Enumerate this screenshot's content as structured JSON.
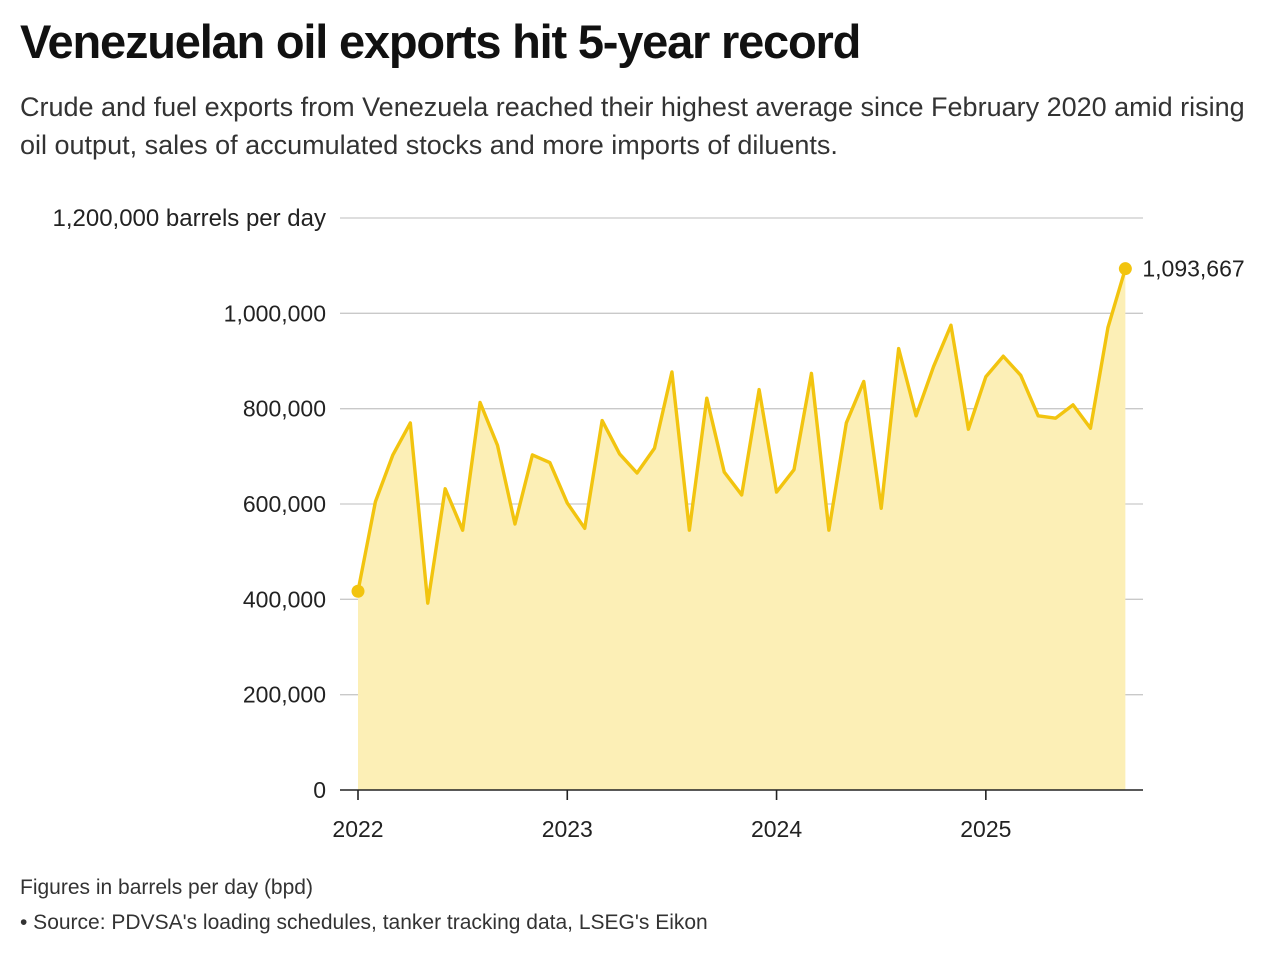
{
  "title": "Venezuelan oil exports hit 5-year record",
  "subtitle": "Crude and fuel exports from Venezuela reached their highest average since February 2020 amid rising oil output, sales of accumulated stocks and more imports of diluents.",
  "footnote": "Figures in barrels per day (bpd)",
  "source": "• Source: PDVSA's loading schedules, tanker tracking data, LSEG's Eikon",
  "chart_data": {
    "type": "area",
    "title": "Venezuelan oil exports hit 5-year record",
    "ylabel": "barrels per day",
    "xlabel": "",
    "ylim": [
      0,
      1200000
    ],
    "yticks": [
      0,
      200000,
      400000,
      600000,
      800000,
      1000000,
      1200000
    ],
    "ytick_labels": [
      "0",
      "200,000",
      "400,000",
      "600,000",
      "800,000",
      "1,000,000",
      "1,200,000 barrels per day"
    ],
    "xticks": [
      2022,
      2023,
      2024,
      2025
    ],
    "xtick_labels": [
      "2022",
      "2023",
      "2024",
      "2025"
    ],
    "grid": true,
    "line_color": "#f2c40f",
    "fill_color": "#fcefb6",
    "x": [
      "2022-01",
      "2022-02",
      "2022-03",
      "2022-04",
      "2022-05",
      "2022-06",
      "2022-07",
      "2022-08",
      "2022-09",
      "2022-10",
      "2022-11",
      "2022-12",
      "2023-01",
      "2023-02",
      "2023-03",
      "2023-04",
      "2023-05",
      "2023-06",
      "2023-07",
      "2023-08",
      "2023-09",
      "2023-10",
      "2023-11",
      "2023-12",
      "2024-01",
      "2024-02",
      "2024-03",
      "2024-04",
      "2024-05",
      "2024-06",
      "2024-07",
      "2024-08",
      "2024-09",
      "2024-10",
      "2024-11",
      "2024-12",
      "2025-01",
      "2025-02",
      "2025-03",
      "2025-04",
      "2025-05",
      "2025-06",
      "2025-07",
      "2025-08",
      "2025-09"
    ],
    "values": [
      417000,
      605000,
      703000,
      770000,
      392000,
      632000,
      545000,
      813000,
      723000,
      558000,
      703000,
      687000,
      602000,
      549000,
      775000,
      705000,
      665000,
      717000,
      877000,
      545000,
      822000,
      667000,
      619000,
      840000,
      625000,
      672000,
      874000,
      545000,
      770000,
      857000,
      591000,
      926000,
      785000,
      888000,
      975000,
      757000,
      867000,
      910000,
      870000,
      785000,
      780000,
      808000,
      759000,
      970000,
      1093667
    ],
    "annotations": [
      {
        "x": "2025-09",
        "value": 1093667,
        "label": "1,093,667"
      }
    ]
  }
}
